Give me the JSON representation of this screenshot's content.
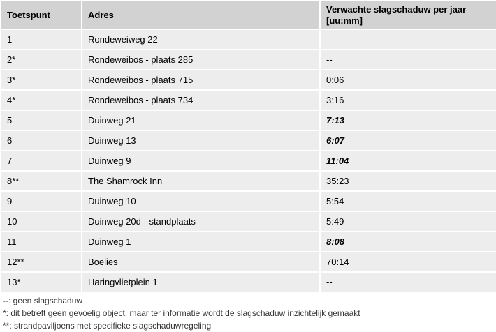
{
  "table": {
    "headers": {
      "point": "Toetspunt",
      "address": "Adres",
      "shadow_line1": "Verwachte slagschaduw per jaar",
      "shadow_line2": "[uu:mm]"
    },
    "rows": [
      {
        "point": "1",
        "address": "Rondeweiweg 22",
        "shadow": "--"
      },
      {
        "point": "2*",
        "address": "Rondeweibos - plaats 285",
        "shadow": "--"
      },
      {
        "point": "3*",
        "address": "Rondeweibos - plaats 715",
        "shadow": "0:06"
      },
      {
        "point": "4*",
        "address": "Rondeweibos - plaats 734",
        "shadow": "3:16"
      },
      {
        "point": "5",
        "address": "Duinweg 21",
        "shadow": "7:13"
      },
      {
        "point": "6",
        "address": "Duinweg 13",
        "shadow": "6:07"
      },
      {
        "point": "7",
        "address": "Duinweg 9",
        "shadow": "11:04"
      },
      {
        "point": "8**",
        "address": "The Shamrock Inn",
        "shadow": "35:23"
      },
      {
        "point": "9",
        "address": "Duinweg 10",
        "shadow": "5:54"
      },
      {
        "point": "10",
        "address": "Duinweg 20d - standplaats",
        "shadow": "5:49"
      },
      {
        "point": "11",
        "address": "Duinweg 1",
        "shadow": "8:08"
      },
      {
        "point": "12**",
        "address": "Boelies",
        "shadow": "70:14"
      },
      {
        "point": "13*",
        "address": "Haringvlietplein 1",
        "shadow": "--"
      }
    ]
  },
  "footnotes": {
    "no_shadow": "--: geen slagschaduw",
    "single_star": "*: dit betreft geen gevoelig object, maar ter informatie wordt de slagschaduw inzichtelijk gemaakt",
    "double_star": "**: strandpaviljoens met specifieke slagschaduwregeling"
  }
}
